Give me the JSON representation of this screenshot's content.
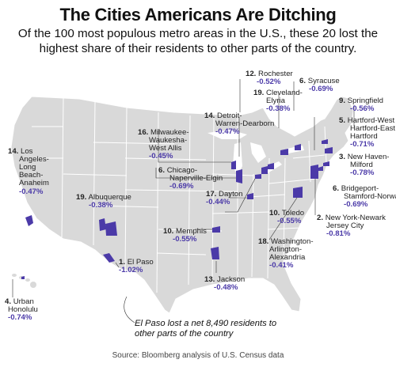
{
  "title": "The Cities Americans Are Ditching",
  "subtitle": "Of the 100 most populous metro areas in the U.S., these 20 lost the highest share of their residents to other parts of the country.",
  "colors": {
    "land": "#d9d9d9",
    "border": "#ffffff",
    "highlight": "#4b3aa8",
    "value_text": "#4b3aa8"
  },
  "metros": [
    {
      "rank": "12.",
      "name_lines": [
        "Rochester"
      ],
      "value": "-0.52%"
    },
    {
      "rank": "6.",
      "name_lines": [
        "Syracuse"
      ],
      "value": "-0.69%"
    },
    {
      "rank": "19.",
      "name_lines": [
        "Cleveland-",
        "Elyria"
      ],
      "value": "-0.38%"
    },
    {
      "rank": "9.",
      "name_lines": [
        "Springfield"
      ],
      "value": "-0.56%"
    },
    {
      "rank": "5.",
      "name_lines": [
        "Hartford-West",
        "Hartford-East",
        "Hartford"
      ],
      "value": "-0.71%"
    },
    {
      "rank": "14.",
      "name_lines": [
        "Detroit-",
        "Warren-Dearborn"
      ],
      "value": "-0.47%"
    },
    {
      "rank": "3.",
      "name_lines": [
        "New Haven-",
        "Milford"
      ],
      "value": "-0.78%"
    },
    {
      "rank": "16.",
      "name_lines": [
        "Milwaukee-",
        "Waukesha-",
        "West Allis"
      ],
      "value": "-0.45%"
    },
    {
      "rank": "14.",
      "name_lines": [
        "Los",
        "Angeles-",
        "Long",
        "Beach-",
        "Anaheim"
      ],
      "value": "-0.47%"
    },
    {
      "rank": "6.",
      "name_lines": [
        "Chicago-",
        "Naperville-Elgin"
      ],
      "value": "-0.69%"
    },
    {
      "rank": "6.",
      "name_lines": [
        "Bridgeport-",
        "Stamford-Norwalk"
      ],
      "value": "-0.69%"
    },
    {
      "rank": "19.",
      "name_lines": [
        "Albuquerque"
      ],
      "value": "-0.38%"
    },
    {
      "rank": "17.",
      "name_lines": [
        "Dayton"
      ],
      "value": "-0.44%"
    },
    {
      "rank": "10.",
      "name_lines": [
        "Toledo"
      ],
      "value": "-0.55%"
    },
    {
      "rank": "2.",
      "name_lines": [
        "New York-Newark",
        "Jersey City"
      ],
      "value": "-0.81%"
    },
    {
      "rank": "10.",
      "name_lines": [
        "Memphis"
      ],
      "value": "-0.55%"
    },
    {
      "rank": "18.",
      "name_lines": [
        "Washington-",
        "Arlington-",
        "Alexandria"
      ],
      "value": "-0.41%"
    },
    {
      "rank": "1.",
      "name_lines": [
        "El Paso"
      ],
      "value": "-1.02%"
    },
    {
      "rank": "13.",
      "name_lines": [
        "Jackson"
      ],
      "value": "-0.48%"
    },
    {
      "rank": "4.",
      "name_lines": [
        "Urban",
        "Honolulu"
      ],
      "value": "-0.74%"
    }
  ],
  "annotation": "El Paso lost a net 8,490 residents to other parts of the country",
  "source": "Source: Bloomberg analysis of U.S. Census data"
}
